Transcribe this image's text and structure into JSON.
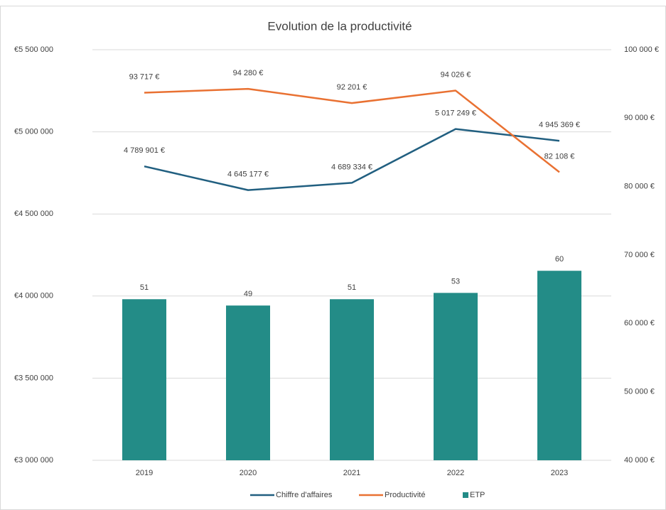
{
  "chart_data": {
    "type": "combo",
    "title": "Evolution de la productivité",
    "categories": [
      "2019",
      "2020",
      "2021",
      "2022",
      "2023"
    ],
    "series": [
      {
        "name": "Chiffre d'affaires",
        "type": "line",
        "axis": "y",
        "color": "#215f80",
        "values": [
          4789901,
          4645177,
          4689334,
          5017249,
          4945369
        ],
        "value_labels": [
          "4 789 901 €",
          "4 645 177 €",
          "4 689 334 €",
          "5 017 249 €",
          "4 945 369 €"
        ]
      },
      {
        "name": "Productivité",
        "type": "line",
        "axis": "y2",
        "color": "#e97132",
        "values": [
          93717,
          94280,
          92201,
          94026,
          82108
        ],
        "value_labels": [
          "93 717 €",
          "94 280 €",
          "92 201 €",
          "94 026 €",
          "82 108 €"
        ]
      },
      {
        "name": "ETP",
        "type": "bar",
        "axis": "y3",
        "color": "#238c87",
        "values": [
          51,
          49,
          51,
          53,
          60
        ]
      }
    ],
    "ylim": [
      3000000,
      5500000
    ],
    "yticks": [
      {
        "value": 3000000,
        "label": "€3 000 000"
      },
      {
        "value": 3500000,
        "label": "€3 500 000"
      },
      {
        "value": 4000000,
        "label": "€4 000 000"
      },
      {
        "value": 4500000,
        "label": "€4 500 000"
      },
      {
        "value": 5000000,
        "label": "€5 000 000"
      },
      {
        "value": 5500000,
        "label": "€5 500 000"
      }
    ],
    "y2lim": [
      40000,
      100000
    ],
    "y2ticks": [
      {
        "value": 40000,
        "label": "40 000 €"
      },
      {
        "value": 50000,
        "label": "50 000 €"
      },
      {
        "value": 60000,
        "label": "60 000 €"
      },
      {
        "value": 70000,
        "label": "70 000 €"
      },
      {
        "value": 80000,
        "label": "80 000 €"
      },
      {
        "value": 90000,
        "label": "90 000 €"
      },
      {
        "value": 100000,
        "label": "100 000 €"
      }
    ],
    "y3lim": [
      0,
      130
    ],
    "grid": true,
    "legend": "bottom"
  }
}
